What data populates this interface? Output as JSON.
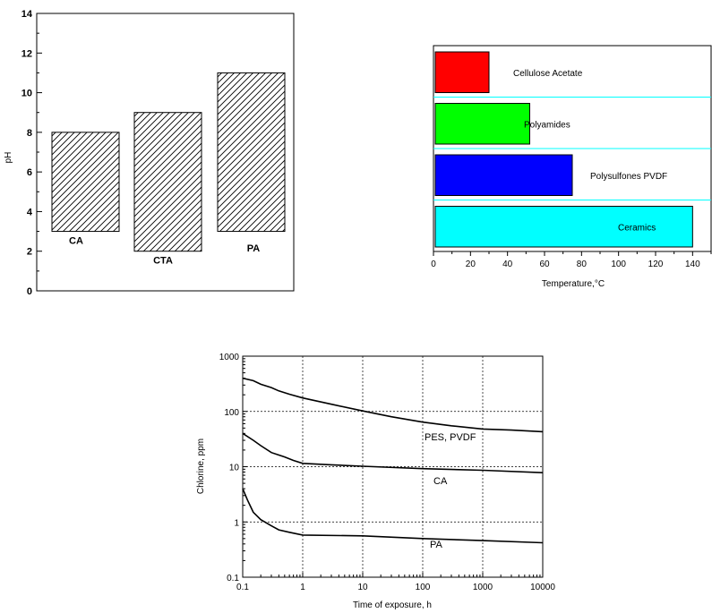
{
  "chart_data": [
    {
      "type": "bar",
      "bar_style": "floating",
      "fill": "diagonal-hatch",
      "categories": [
        "CA",
        "CTA",
        "PA"
      ],
      "ranges": [
        [
          3,
          8
        ],
        [
          2,
          9
        ],
        [
          3,
          11
        ]
      ],
      "ylabel": "pH",
      "ylim": [
        0,
        14
      ],
      "yticks": [
        0,
        2,
        4,
        6,
        8,
        10,
        12,
        14
      ],
      "grid": false
    },
    {
      "type": "bar",
      "orientation": "horizontal",
      "categories": [
        "Cellulose Acetate",
        "Polyamides",
        "Polysulfones PVDF",
        "Ceramics"
      ],
      "values": [
        30,
        52,
        75,
        140
      ],
      "colors": [
        "#ff0000",
        "#00ff00",
        "#0000ff",
        "#00ffff"
      ],
      "separator_color": "#00ffff",
      "xlabel": "Temperature,°C",
      "xlim": [
        0,
        150
      ],
      "xticks": [
        0,
        20,
        40,
        60,
        80,
        100,
        120,
        140
      ],
      "grid": false
    },
    {
      "type": "line",
      "xscale": "log",
      "yscale": "log",
      "xlabel": "Time of exposure, h",
      "ylabel": "Chlorine, ppm",
      "xlim": [
        0.1,
        10000
      ],
      "ylim": [
        0.1,
        1000
      ],
      "xticks": [
        "0.1",
        "1",
        "10",
        "100",
        "1000",
        "10000"
      ],
      "yticks": [
        "0.1",
        "1",
        "10",
        "100",
        "1000"
      ],
      "grid": true,
      "series": [
        {
          "name": "PES, PVDF",
          "x": [
            0.1,
            0.15,
            0.2,
            0.3,
            0.4,
            0.6,
            1,
            3,
            10,
            30,
            100,
            300,
            1000,
            3000,
            10000
          ],
          "y": [
            400,
            360,
            310,
            270,
            235,
            205,
            175,
            135,
            102,
            80,
            64,
            55,
            48,
            46,
            43
          ]
        },
        {
          "name": "CA",
          "x": [
            0.1,
            0.15,
            0.2,
            0.3,
            0.5,
            0.7,
            1,
            3,
            10,
            100,
            1000,
            10000
          ],
          "y": [
            40,
            30,
            24,
            18,
            15,
            13,
            11.5,
            10.8,
            10.2,
            9.2,
            8.6,
            7.8
          ]
        },
        {
          "name": "PA",
          "x": [
            0.1,
            0.12,
            0.15,
            0.2,
            0.3,
            0.4,
            0.6,
            1,
            10,
            100,
            1000,
            10000
          ],
          "y": [
            4,
            2.5,
            1.5,
            1.1,
            0.85,
            0.72,
            0.65,
            0.58,
            0.56,
            0.5,
            0.46,
            0.42
          ]
        }
      ]
    }
  ]
}
